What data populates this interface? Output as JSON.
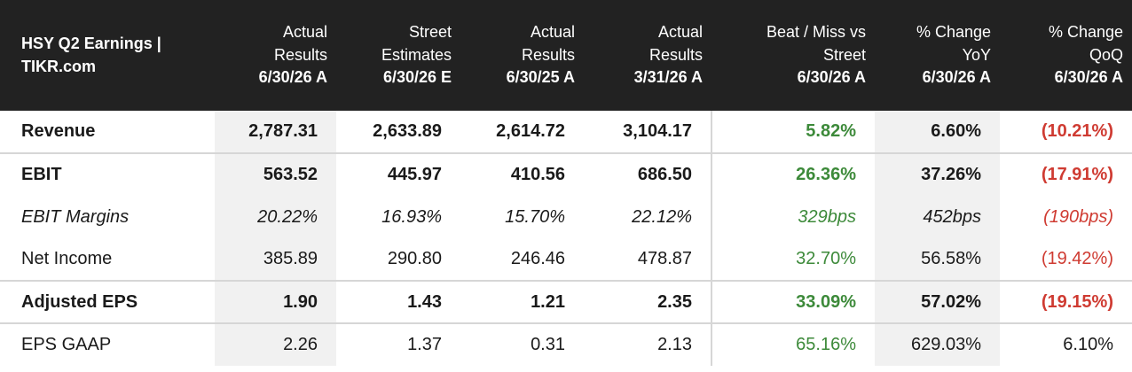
{
  "table": {
    "title": "HSY Q2 Earnings | TIKR.com",
    "columns": [
      {
        "top": "Actual Results",
        "bottom": "6/30/26 A"
      },
      {
        "top": "Street Estimates",
        "bottom": "6/30/26 E"
      },
      {
        "top": "Actual Results",
        "bottom": "6/30/25 A"
      },
      {
        "top": "Actual Results",
        "bottom": "3/31/26 A"
      },
      {
        "top": "Beat / Miss vs Street",
        "bottom": "6/30/26 A"
      },
      {
        "top": "% Change YoY",
        "bottom": "6/30/26 A"
      },
      {
        "top": "% Change QoQ",
        "bottom": "6/30/26 A"
      }
    ],
    "rows": [
      {
        "label": "Revenue",
        "style": "bold",
        "values": [
          "2,787.31",
          "2,633.89",
          "2,614.72",
          "3,104.17",
          "5.82%",
          "6.60%",
          "(10.21%)"
        ]
      },
      {
        "label": "EBIT",
        "style": "bold",
        "values": [
          "563.52",
          "445.97",
          "410.56",
          "686.50",
          "26.36%",
          "37.26%",
          "(17.91%)"
        ]
      },
      {
        "label": "EBIT Margins",
        "style": "italic",
        "values": [
          "20.22%",
          "16.93%",
          "15.70%",
          "22.12%",
          "329bps",
          "452bps",
          "(190bps)"
        ]
      },
      {
        "label": "Net Income",
        "style": "normal",
        "values": [
          "385.89",
          "290.80",
          "246.46",
          "478.87",
          "32.70%",
          "56.58%",
          "(19.42%)"
        ]
      },
      {
        "label": "Adjusted EPS",
        "style": "bold",
        "values": [
          "1.90",
          "1.43",
          "1.21",
          "2.35",
          "33.09%",
          "57.02%",
          "(19.15%)"
        ]
      },
      {
        "label": "EPS GAAP",
        "style": "normal",
        "values": [
          "2.26",
          "1.37",
          "0.31",
          "2.13",
          "65.16%",
          "629.03%",
          "6.10%"
        ]
      }
    ]
  },
  "colors": {
    "header_bg": "#222222",
    "positive": "#3d8a3a",
    "negative": "#cf3b32",
    "shade": "#f1f1f1"
  }
}
